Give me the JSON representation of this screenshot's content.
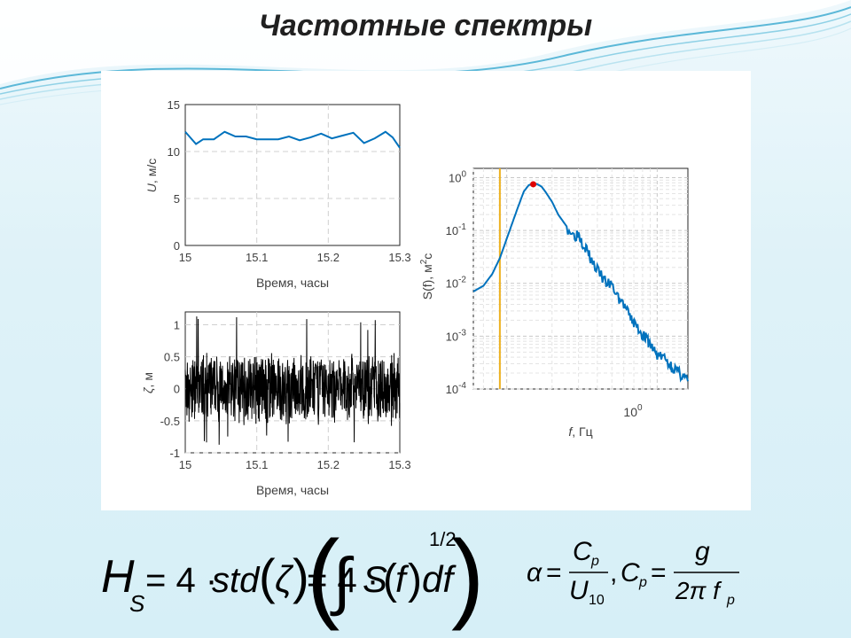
{
  "slide": {
    "title": "Частотные спектры"
  },
  "colors": {
    "series_blue": "#0072bd",
    "series_black": "#000000",
    "cutoff_orange": "#edb120",
    "peak_red": "#e00000"
  },
  "chart_data": [
    {
      "id": "wind",
      "type": "line",
      "xlabel": "Время, часы",
      "ylabel_html": "U, м/с",
      "ylabel_var": "U",
      "ylabel_unit": ", м/с",
      "xlim": [
        15,
        15.3
      ],
      "ylim": [
        0,
        15
      ],
      "xticks": [
        15,
        15.1,
        15.2,
        15.3
      ],
      "xtick_labels": [
        "15",
        "15.1",
        "15.2",
        "15.3"
      ],
      "yticks": [
        0,
        5,
        10,
        15
      ],
      "ytick_labels": [
        "0",
        "5",
        "10",
        "15"
      ],
      "grid": true,
      "series": [
        {
          "x": [
            15.0,
            15.015,
            15.025,
            15.04,
            15.055,
            15.07,
            15.085,
            15.1,
            15.115,
            15.13,
            15.145,
            15.16,
            15.175,
            15.19,
            15.205,
            15.22,
            15.235,
            15.25,
            15.265,
            15.28,
            15.29,
            15.3
          ],
          "y": [
            12.1,
            10.8,
            11.3,
            11.3,
            12.1,
            11.6,
            11.6,
            11.3,
            11.3,
            11.3,
            11.6,
            11.2,
            11.5,
            11.9,
            11.4,
            11.7,
            12.0,
            10.9,
            11.4,
            12.1,
            11.5,
            10.4
          ]
        }
      ]
    },
    {
      "id": "elevation",
      "type": "line",
      "xlabel": "Время, часы",
      "ylabel_var": "ζ",
      "ylabel_unit": ", м",
      "xlim": [
        15,
        15.3
      ],
      "ylim": [
        -1,
        1.2
      ],
      "xticks": [
        15,
        15.1,
        15.2,
        15.3
      ],
      "xtick_labels": [
        "15",
        "15.1",
        "15.2",
        "15.3"
      ],
      "yticks": [
        -1,
        -0.5,
        0,
        0.5,
        1
      ],
      "ytick_labels": [
        "-1",
        "-0.5",
        "0",
        "0.5",
        "1"
      ],
      "grid": true,
      "series": [
        {
          "y_envelope": [
            0.6,
            -0.6
          ],
          "y_peak_max": 1.2,
          "y_peak_min": -0.85
        }
      ]
    },
    {
      "id": "spectrum",
      "type": "line",
      "xlabel_var": "f",
      "xlabel_unit": ", Гц",
      "ylabel_main": "S(f), м",
      "ylabel_sup": "2",
      "ylabel_tail": "c",
      "xscale": "log",
      "yscale": "log",
      "xlim": [
        0.06,
        1.6
      ],
      "ylim": [
        0.0001,
        1.5
      ],
      "xtick_label_base": "10",
      "xtick_label_exp": "0",
      "ytick_bases": [
        "10",
        "10",
        "10",
        "10",
        "10"
      ],
      "ytick_exps": [
        "0",
        "-1",
        "-2",
        "-3",
        "-4"
      ],
      "cutoff_x": 0.09,
      "peak": {
        "x": 0.15,
        "y": 0.75
      },
      "grid": true,
      "series": [
        {
          "x": [
            0.06,
            0.07,
            0.08,
            0.09,
            0.1,
            0.11,
            0.12,
            0.13,
            0.14,
            0.15,
            0.16,
            0.17,
            0.18,
            0.2,
            0.22,
            0.25,
            0.28,
            0.3,
            0.32,
            0.34,
            0.36,
            0.4,
            0.45,
            0.5,
            0.55,
            0.6,
            0.65,
            0.7,
            0.75,
            0.8,
            0.85,
            0.9,
            0.95,
            1.0,
            1.1,
            1.2,
            1.3,
            1.4,
            1.5,
            1.6
          ],
          "y": [
            0.007,
            0.009,
            0.015,
            0.03,
            0.07,
            0.15,
            0.3,
            0.55,
            0.72,
            0.78,
            0.75,
            0.68,
            0.55,
            0.35,
            0.2,
            0.12,
            0.08,
            0.09,
            0.06,
            0.045,
            0.03,
            0.018,
            0.011,
            0.009,
            0.0055,
            0.004,
            0.0025,
            0.0018,
            0.0014,
            0.0011,
            0.0009,
            0.0007,
            0.00055,
            0.00045,
            0.0004,
            0.0003,
            0.00025,
            0.0002,
            0.00018,
            0.00014
          ]
        }
      ]
    }
  ],
  "formulas": {
    "left": {
      "lhs_var": "H",
      "lhs_sub": "S",
      "eq1": "= 4 · ",
      "std": "std",
      "paren_var": "ζ",
      "eq2": " = 4 · ",
      "integral": "∫",
      "S": "S",
      "f": "f",
      "df": "df",
      "power": "1/2"
    },
    "right": {
      "alpha": "α",
      "eq": "=",
      "Cp_num": "C",
      "Cp_num_sub": "p",
      "U_den": "U",
      "U_sub": "10",
      "comma": ",",
      "Cp": "C",
      "Cp_sub": "p",
      "eq2": "=",
      "g": "g",
      "den": "2π f",
      "den_sub": "p"
    }
  }
}
